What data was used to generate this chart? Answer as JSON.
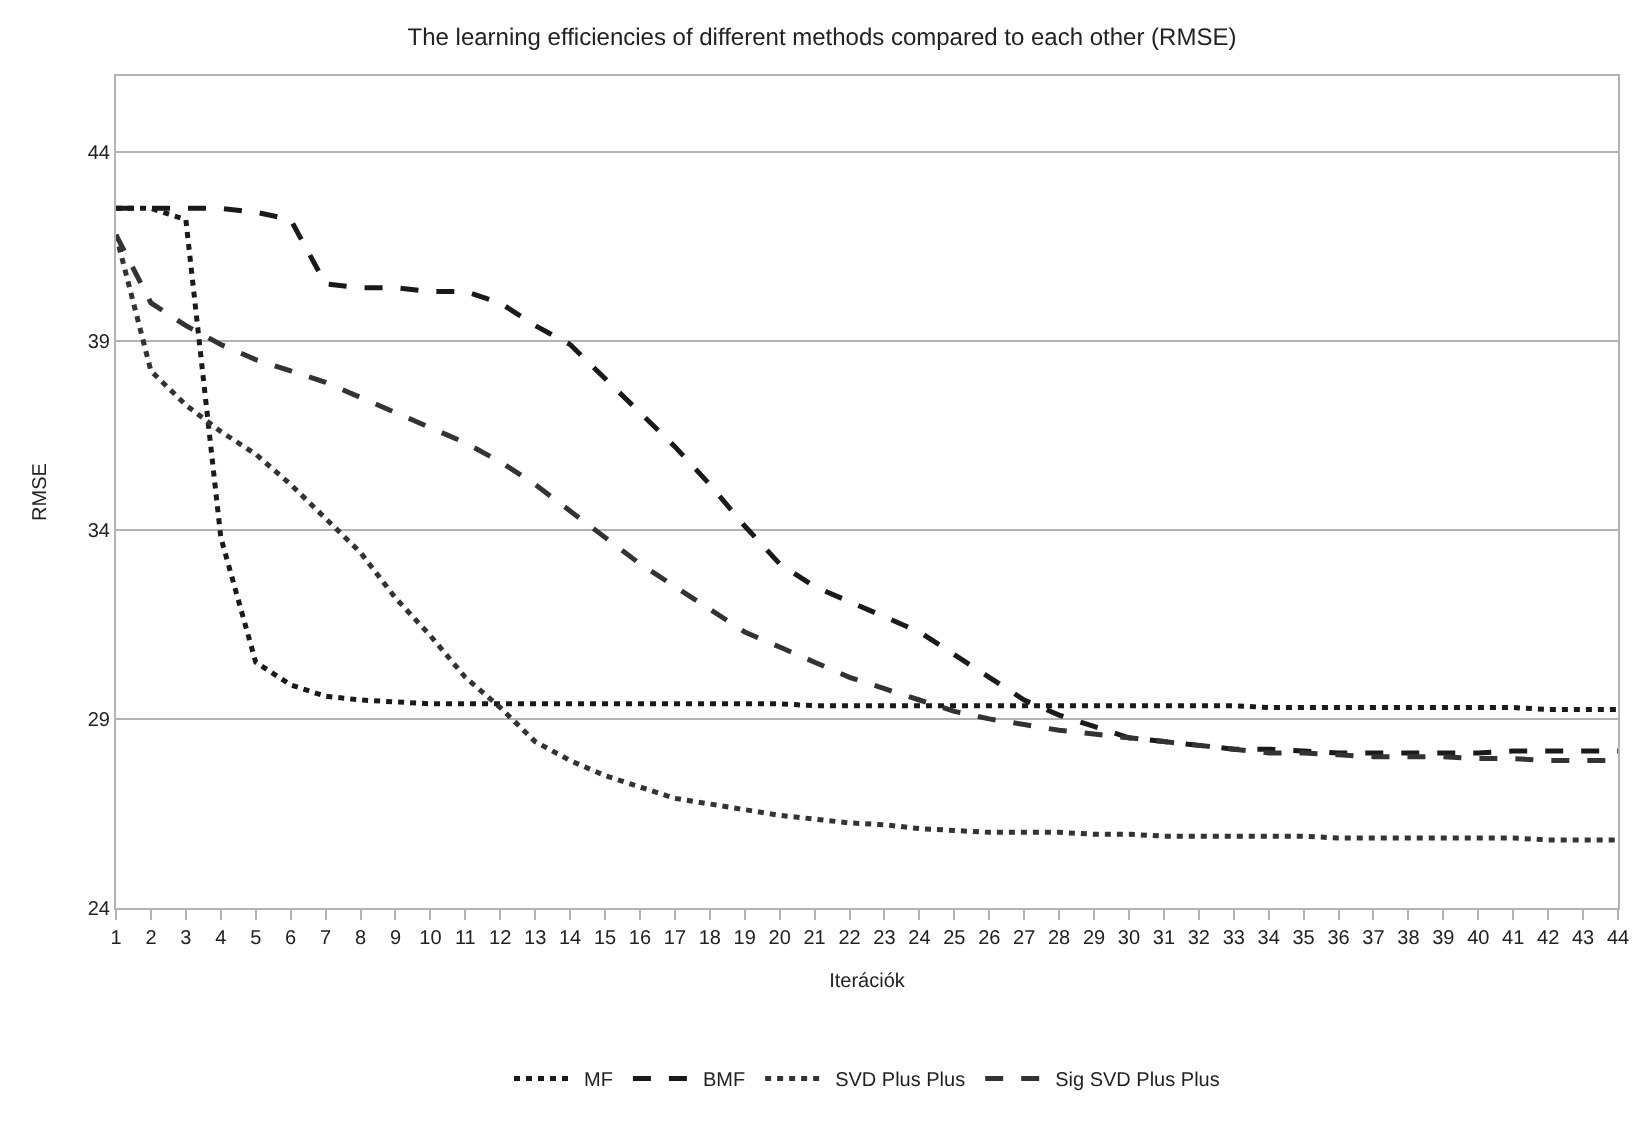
{
  "chart_data": {
    "type": "line",
    "title": "The learning efficiencies of different methods compared to each other (RMSE)",
    "xlabel": "Iterációk",
    "ylabel": "RMSE",
    "x": [
      1,
      2,
      3,
      4,
      5,
      6,
      7,
      8,
      9,
      10,
      11,
      12,
      13,
      14,
      15,
      16,
      17,
      18,
      19,
      20,
      21,
      22,
      23,
      24,
      25,
      26,
      27,
      28,
      29,
      30,
      31,
      32,
      33,
      34,
      35,
      36,
      37,
      38,
      39,
      40,
      41,
      42,
      43,
      44
    ],
    "xlim": [
      1,
      44
    ],
    "xticks": [
      1,
      2,
      3,
      4,
      5,
      6,
      7,
      8,
      9,
      10,
      11,
      12,
      13,
      14,
      15,
      16,
      17,
      18,
      19,
      20,
      21,
      22,
      23,
      24,
      25,
      26,
      27,
      28,
      29,
      30,
      31,
      32,
      33,
      34,
      35,
      36,
      37,
      38,
      39,
      40,
      41,
      42,
      43,
      44
    ],
    "ylim": [
      24,
      46
    ],
    "yticks": [
      24,
      29,
      34,
      39,
      44
    ],
    "grid": "y",
    "legend": "bottom",
    "series": [
      {
        "name": "MF",
        "color": "#1a1a1a",
        "line_style": "dotted",
        "values": [
          42.5,
          42.5,
          42.2,
          33.8,
          30.5,
          29.9,
          29.6,
          29.5,
          29.45,
          29.4,
          29.4,
          29.4,
          29.4,
          29.4,
          29.4,
          29.4,
          29.4,
          29.4,
          29.4,
          29.4,
          29.35,
          29.35,
          29.35,
          29.35,
          29.35,
          29.35,
          29.35,
          29.35,
          29.35,
          29.35,
          29.35,
          29.35,
          29.35,
          29.3,
          29.3,
          29.3,
          29.3,
          29.3,
          29.3,
          29.3,
          29.3,
          29.25,
          29.25,
          29.25
        ]
      },
      {
        "name": "BMF",
        "color": "#1a1a1a",
        "line_style": "dashed",
        "values": [
          42.5,
          42.5,
          42.5,
          42.5,
          42.4,
          42.2,
          40.5,
          40.4,
          40.4,
          40.3,
          40.3,
          40.0,
          39.4,
          38.9,
          38.0,
          37.1,
          36.2,
          35.2,
          34.1,
          33.1,
          32.5,
          32.1,
          31.7,
          31.3,
          30.7,
          30.1,
          29.5,
          29.1,
          28.8,
          28.5,
          28.4,
          28.3,
          28.2,
          28.2,
          28.15,
          28.1,
          28.1,
          28.1,
          28.1,
          28.1,
          28.15,
          28.15,
          28.15,
          28.15
        ]
      },
      {
        "name": "SVD Plus Plus",
        "color": "#333333",
        "line_style": "dotted",
        "values": [
          41.8,
          38.2,
          37.3,
          36.6,
          36.0,
          35.2,
          34.3,
          33.4,
          32.2,
          31.2,
          30.1,
          29.3,
          28.4,
          27.9,
          27.5,
          27.2,
          26.9,
          26.75,
          26.6,
          26.45,
          26.35,
          26.25,
          26.2,
          26.1,
          26.05,
          26.0,
          26.0,
          26.0,
          25.95,
          25.95,
          25.9,
          25.9,
          25.9,
          25.9,
          25.9,
          25.85,
          25.85,
          25.85,
          25.85,
          25.85,
          25.85,
          25.8,
          25.8,
          25.8
        ]
      },
      {
        "name": "Sig SVD Plus Plus",
        "color": "#333333",
        "line_style": "dashed",
        "values": [
          41.8,
          40.0,
          39.4,
          38.9,
          38.5,
          38.2,
          37.9,
          37.5,
          37.1,
          36.7,
          36.3,
          35.8,
          35.2,
          34.5,
          33.8,
          33.1,
          32.5,
          31.9,
          31.3,
          30.9,
          30.5,
          30.1,
          29.8,
          29.5,
          29.2,
          29.0,
          28.85,
          28.7,
          28.6,
          28.5,
          28.4,
          28.3,
          28.2,
          28.1,
          28.1,
          28.05,
          28.0,
          28.0,
          28.0,
          27.95,
          27.95,
          27.9,
          27.9,
          27.9
        ]
      }
    ]
  }
}
